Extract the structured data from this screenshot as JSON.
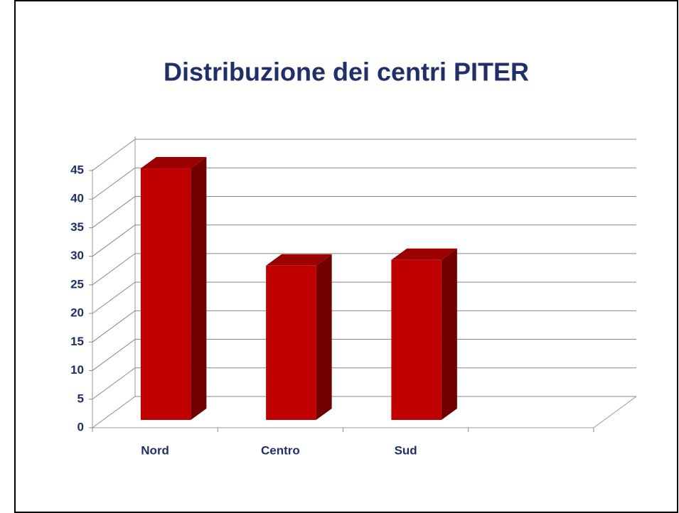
{
  "chart_data": {
    "type": "bar3d",
    "title": "Distribuzione dei centri PITER",
    "categories": [
      "Nord",
      "Centro",
      "Sud",
      null
    ],
    "values": [
      44,
      27,
      28,
      null
    ],
    "color": "#c00000",
    "ylim": [
      0,
      45
    ],
    "yticks": [
      0,
      5,
      10,
      15,
      20,
      25,
      30,
      35,
      40,
      45
    ],
    "grid": true
  }
}
